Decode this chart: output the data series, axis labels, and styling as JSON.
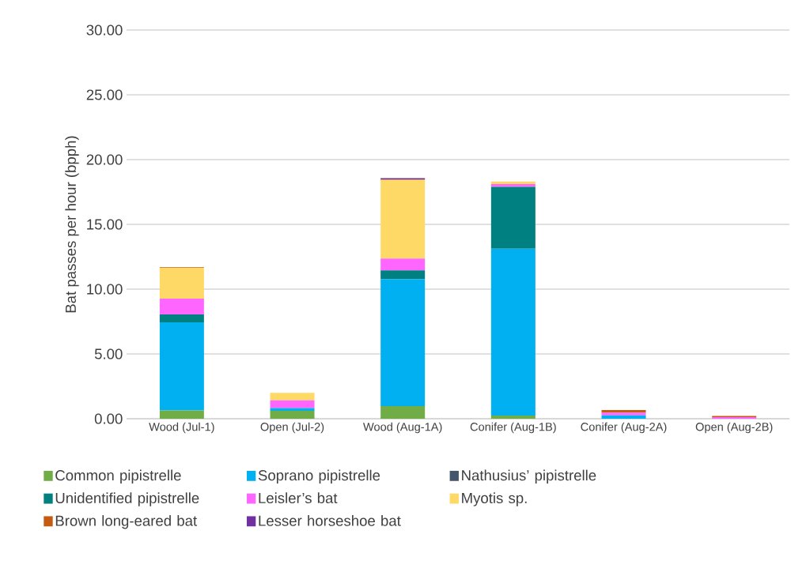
{
  "chart_data": {
    "type": "bar",
    "stacked": true,
    "ylabel": "Bat passes per hour (bpph)",
    "categories": [
      "Wood (Jul-1)",
      "Open (Jul-2)",
      "Wood (Aug-1A)",
      "Conifer (Aug-1B)",
      "Conifer (Aug-2A)",
      "Open (Aug-2B)"
    ],
    "series": [
      {
        "name": "Common pipistrelle",
        "color": "#70ad47",
        "values": [
          0.64,
          0.61,
          0.97,
          0.24,
          null,
          0
        ]
      },
      {
        "name": "Soprano pipistrelle",
        "color": "#00b0f0",
        "values": [
          6.8,
          0.2,
          9.8,
          12.89,
          0.26,
          0
        ]
      },
      {
        "name": "Nathusius’ pipistrelle",
        "color": "#44546a",
        "values": [
          0,
          0,
          0,
          0,
          0,
          0
        ]
      },
      {
        "name": "Unidentified pipistrelle",
        "color": "#008080",
        "values": [
          0.61,
          0.02,
          0.68,
          4.76,
          0,
          0
        ]
      },
      {
        "name": "Leisler’s bat",
        "color": "#ff66ff",
        "values": [
          1.22,
          0.58,
          0.92,
          0.22,
          0.21,
          0.12
        ]
      },
      {
        "name": "Myotis sp.",
        "color": "#ffd966",
        "values": [
          2.38,
          0.59,
          6.06,
          0.2,
          0,
          0
        ]
      },
      {
        "name": "Brown long-eared bat",
        "color": "#c55a11",
        "values": [
          0.05,
          0,
          0.03,
          0,
          0.2,
          0.1
        ]
      },
      {
        "name": "Lesser horseshoe bat",
        "color": "#7030a0",
        "values": [
          0,
          0,
          0.1,
          null,
          0,
          0
        ]
      }
    ],
    "ylim": [
      0,
      30
    ],
    "yticks": [
      {
        "value": 0,
        "label": "0.00"
      },
      {
        "value": 5,
        "label": "5.00"
      },
      {
        "value": 10,
        "label": "10.00"
      },
      {
        "value": 15,
        "label": "15.00"
      },
      {
        "value": 20,
        "label": "20.00"
      },
      {
        "value": 25,
        "label": "25.00"
      },
      {
        "value": 30,
        "label": "30.00"
      }
    ],
    "grid": "y",
    "legend": "bottom"
  }
}
